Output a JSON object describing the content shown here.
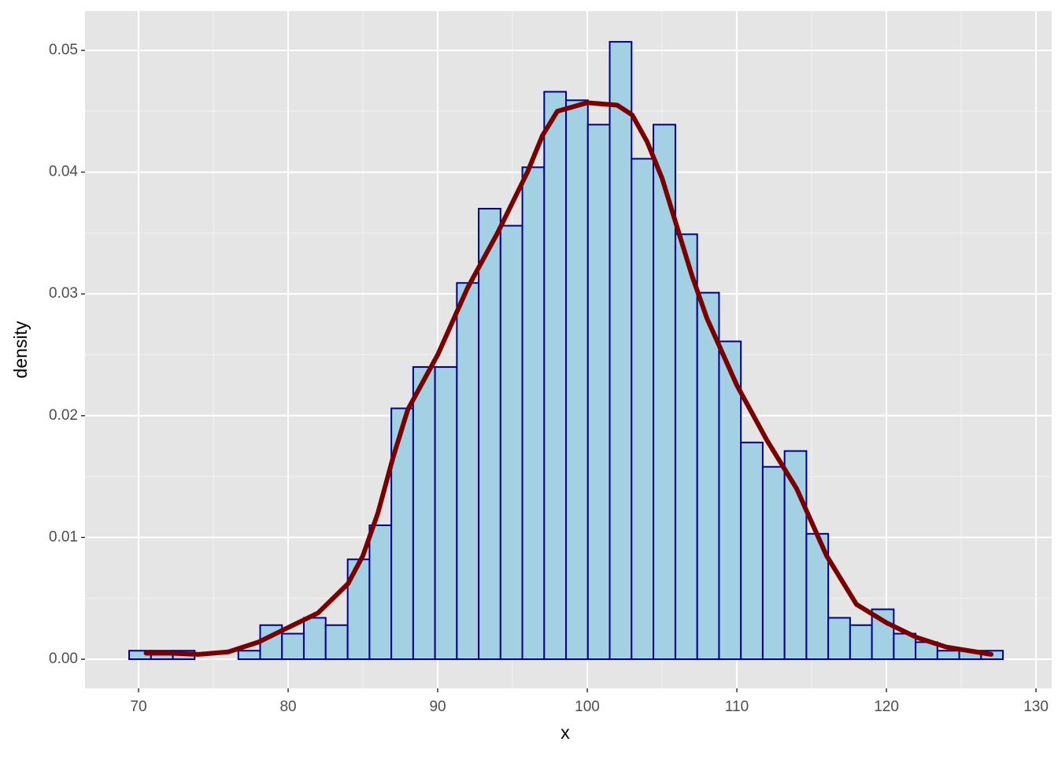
{
  "chart_data": {
    "type": "histogram",
    "x_label": "x",
    "y_label": "density",
    "bins": [
      69.37,
      70.83,
      72.29,
      73.75,
      75.21,
      76.67,
      78.13,
      79.59,
      81.05,
      82.51,
      83.98,
      85.44,
      86.9,
      88.36,
      89.82,
      91.28,
      92.74,
      94.2,
      95.66,
      97.12,
      98.58,
      100.04,
      101.5,
      102.96,
      104.42,
      105.89,
      107.35,
      108.81,
      110.27,
      111.73,
      113.19,
      114.65,
      116.11,
      117.57,
      119.03,
      120.49,
      121.95,
      123.41,
      124.87,
      126.33,
      127.79
    ],
    "values": [
      0.0007,
      0.0007,
      0.0007,
      0,
      0,
      0.0007,
      0.0028,
      0.0021,
      0.0034,
      0.0028,
      0.0082,
      0.011,
      0.0206,
      0.024,
      0.024,
      0.0309,
      0.037,
      0.0356,
      0.0404,
      0.0466,
      0.0459,
      0.0439,
      0.0507,
      0.0411,
      0.0439,
      0.0349,
      0.0301,
      0.0261,
      0.0178,
      0.0158,
      0.0171,
      0.0103,
      0.0034,
      0.0028,
      0.0041,
      0.0021,
      0.0014,
      0.0007,
      0.0007,
      0.0007
    ],
    "fill": "#a3d0e2",
    "edge_color": "#00008b",
    "density": {
      "color": "#7a0000",
      "x": [
        70.5,
        72,
        74,
        76,
        78,
        80,
        82,
        84,
        85,
        86,
        87,
        88,
        90,
        92,
        94,
        96,
        97,
        98,
        100,
        102,
        103,
        104,
        105,
        106,
        107,
        108,
        110,
        112,
        114,
        116,
        118,
        120,
        122,
        124,
        126,
        127
      ],
      "values": [
        0.0005,
        0.0005,
        0.0004,
        0.0006,
        0.0014,
        0.0026,
        0.0038,
        0.0062,
        0.0085,
        0.012,
        0.0165,
        0.0205,
        0.025,
        0.0305,
        0.035,
        0.04,
        0.043,
        0.045,
        0.0457,
        0.0455,
        0.0447,
        0.0425,
        0.0395,
        0.0355,
        0.0315,
        0.028,
        0.0225,
        0.018,
        0.014,
        0.0085,
        0.0045,
        0.003,
        0.0018,
        0.001,
        0.0006,
        0.0004
      ]
    },
    "xlim": [
      66.42,
      131.05
    ],
    "ylim": [
      -0.00239,
      0.05323
    ],
    "xticks": [
      70,
      80,
      90,
      100,
      110,
      120,
      130
    ],
    "yticks": [
      {
        "value": 0,
        "label": "0.00"
      },
      0.01,
      0.02,
      0.03,
      0.04,
      0.05
    ],
    "grid": true
  }
}
